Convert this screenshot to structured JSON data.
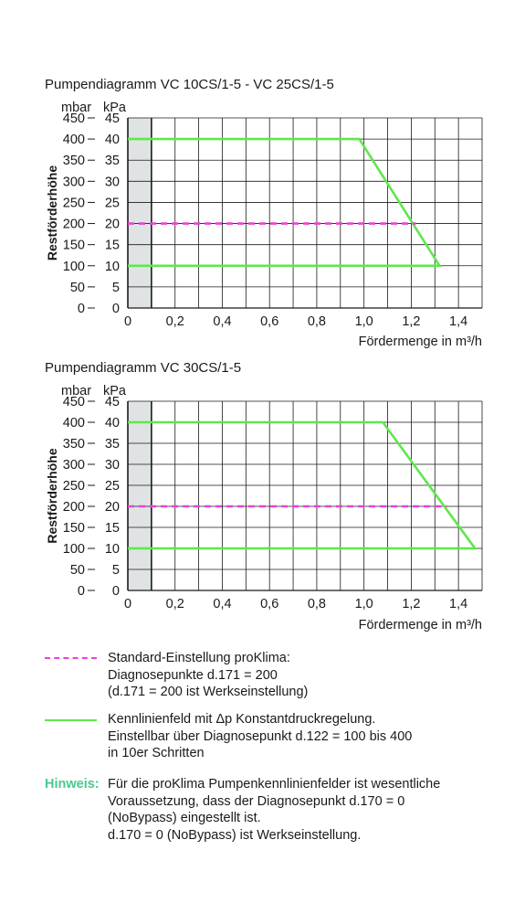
{
  "colors": {
    "green_line": "#5ee84a",
    "magenta_line": "#ee3fd6",
    "hinweis": "#49c98f",
    "grid": "#1a1a1a",
    "shade": "#dfe3e3"
  },
  "chart_data": [
    {
      "type": "line",
      "title": "Pumpendiagramm VC 10CS/1-5 - VC 25CS/1-5",
      "xlabel": "Fördermenge in m³/h",
      "ylabel": "Restförderhöhe",
      "y_units": [
        "mbar",
        "kPa"
      ],
      "x_ticks": [
        "0",
        "0,2",
        "0,4",
        "0,6",
        "0,8",
        "1,0",
        "1,2",
        "1,4"
      ],
      "y_ticks_mbar": [
        "0",
        "50",
        "100",
        "150",
        "200",
        "250",
        "300",
        "350",
        "400",
        "450"
      ],
      "y_ticks_kpa": [
        "0",
        "5",
        "10",
        "15",
        "20",
        "25",
        "30",
        "35",
        "40",
        "45"
      ],
      "xlim": [
        0,
        1.5
      ],
      "ylim": [
        0,
        450
      ],
      "shaded_x_range": [
        0,
        0.1
      ],
      "series": [
        {
          "style": "solid",
          "color": "#5ee84a",
          "x": [
            0,
            0.98,
            1.32,
            0
          ],
          "y": [
            400,
            400,
            100,
            100
          ]
        },
        {
          "style": "dashed",
          "color": "#ee3fd6",
          "x": [
            0,
            1.22
          ],
          "y": [
            200,
            200
          ]
        }
      ]
    },
    {
      "type": "line",
      "title": "Pumpendiagramm VC 30CS/1-5",
      "xlabel": "Fördermenge in m³/h",
      "ylabel": "Restförderhöhe",
      "y_units": [
        "mbar",
        "kPa"
      ],
      "x_ticks": [
        "0",
        "0,2",
        "0,4",
        "0,6",
        "0,8",
        "1,0",
        "1,2",
        "1,4"
      ],
      "y_ticks_mbar": [
        "0",
        "50",
        "100",
        "150",
        "200",
        "250",
        "300",
        "350",
        "400",
        "450"
      ],
      "y_ticks_kpa": [
        "0",
        "5",
        "10",
        "15",
        "20",
        "25",
        "30",
        "35",
        "40",
        "45"
      ],
      "xlim": [
        0,
        1.5
      ],
      "ylim": [
        0,
        450
      ],
      "shaded_x_range": [
        0,
        0.1
      ],
      "series": [
        {
          "style": "solid",
          "color": "#5ee84a",
          "x": [
            0,
            1.08,
            1.47,
            0
          ],
          "y": [
            400,
            400,
            100,
            100
          ]
        },
        {
          "style": "dashed",
          "color": "#ee3fd6",
          "x": [
            0,
            1.35
          ],
          "y": [
            200,
            200
          ]
        }
      ]
    }
  ],
  "legend": {
    "standard": {
      "lines": [
        "Standard-Einstellung proKlima:",
        "Diagnosepunkte d.171 = 200",
        "(d.171 = 200 ist Werkseinstellung)"
      ]
    },
    "kennlinie": {
      "lines": [
        "Kennlinienfeld mit Δp Konstantdruckregelung.",
        "Einstellbar über Diagnosepunkt d.122 = 100 bis 400",
        "in 10er Schritten"
      ]
    }
  },
  "note": {
    "label": "Hinweis:",
    "lines": [
      "Für die proKlima Pumpenkennlinienfelder ist wesentliche",
      "Voraussetzung, dass der Diagnosepunkt d.170 = 0",
      "(NoBypass) eingestellt ist.",
      "d.170 = 0 (NoBypass) ist Werkseinstellung."
    ]
  }
}
